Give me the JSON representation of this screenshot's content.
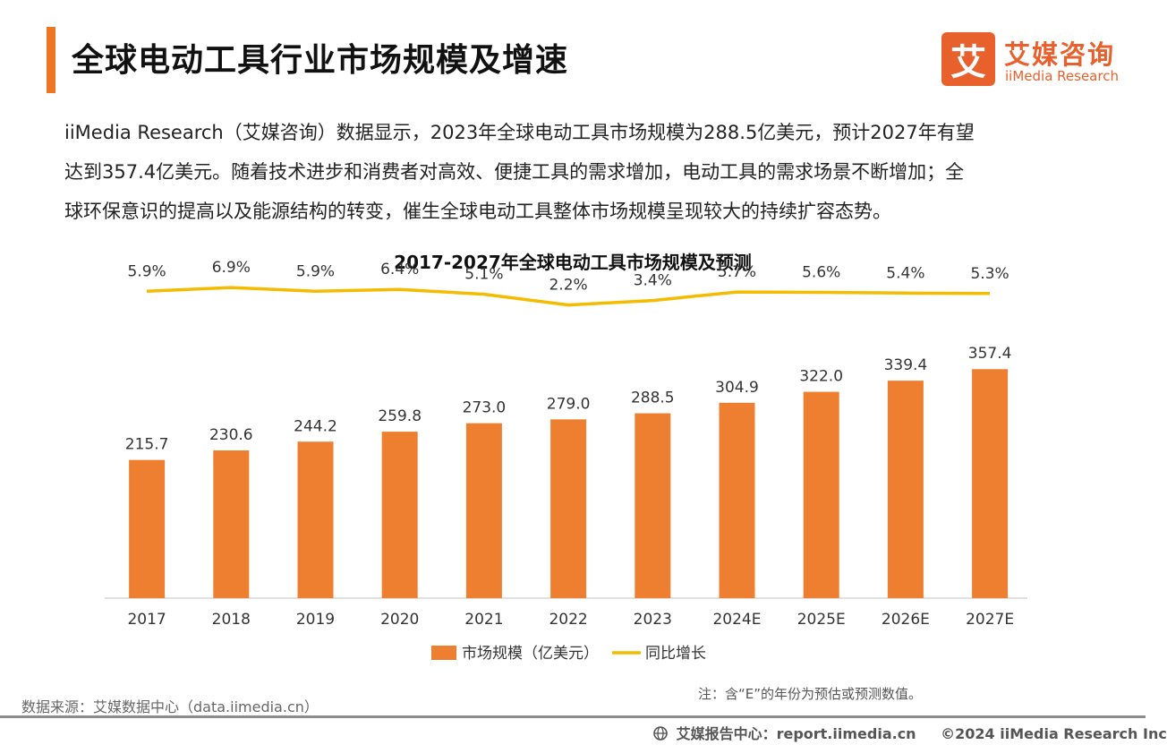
{
  "header": {
    "title": "全球电动工具行业市场规模及增速",
    "logo_mark": "艾",
    "logo_cn": "艾媒咨询",
    "logo_en": "iiMedia Research"
  },
  "intro": {
    "line1": "iiMedia Research（艾媒咨询）数据显示，2023年全球电动工具市场规模为288.5亿美元，预计2027年有望",
    "line2": "达到357.4亿美元。随着技术进步和消费者对高效、便捷工具的需求增加，电动工具的需求场景不断增加；全",
    "line3": "球环保意识的提高以及能源结构的转变，催生全球电动工具整体市场规模呈现较大的持续扩容态势。"
  },
  "chart_data": {
    "type": "bar",
    "title": "2017-2027年全球电动工具市场规模及预测",
    "categories": [
      "2017",
      "2018",
      "2019",
      "2020",
      "2021",
      "2022",
      "2023",
      "2024E",
      "2025E",
      "2026E",
      "2027E"
    ],
    "series": [
      {
        "name": "市场规模（亿美元）",
        "type": "bar",
        "color": "#ee7f31",
        "values": [
          215.7,
          230.6,
          244.2,
          259.8,
          273.0,
          279.0,
          288.5,
          304.9,
          322.0,
          339.4,
          357.4
        ]
      },
      {
        "name": "同比增长",
        "type": "line",
        "color": "#f5bb00",
        "values": [
          5.9,
          6.9,
          5.9,
          6.4,
          5.1,
          2.2,
          3.4,
          5.7,
          5.6,
          5.4,
          5.3
        ],
        "labels": [
          "5.9%",
          "6.9%",
          "5.9%",
          "6.4%",
          "5.1%",
          "2.2%",
          "3.4%",
          "5.7%",
          "5.6%",
          "5.4%",
          "5.3%"
        ]
      }
    ],
    "bar_value_labels": [
      "215.7",
      "230.6",
      "244.2",
      "259.8",
      "273.0",
      "279.0",
      "288.5",
      "304.9",
      "322.0",
      "339.4",
      "357.4"
    ],
    "ylim": [
      0,
      400
    ],
    "y2lim": [
      -30,
      12
    ],
    "legend_position": "bottom-center",
    "grid": false
  },
  "footer": {
    "source": "数据来源：艾媒数据中心（data.iimedia.cn）",
    "note": "注：含“E”的年份为预估或预测数值。",
    "report_center": "艾媒报告中心：report.iimedia.cn",
    "copyright": "©2024  iiMedia Research  Inc"
  }
}
